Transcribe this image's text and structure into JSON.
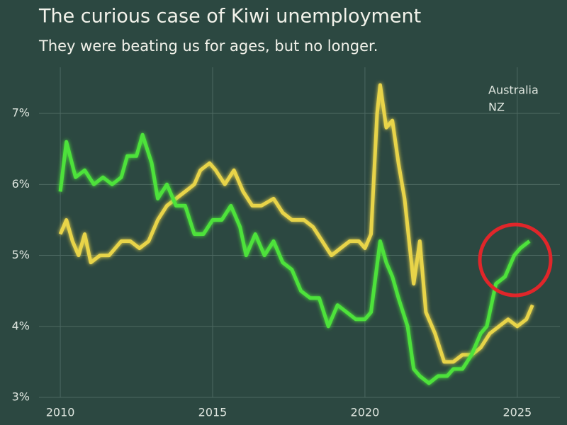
{
  "chart_data": {
    "type": "line",
    "title": "The curious case of Kiwi unemployment",
    "subtitle": "They were beating us for ages, but no longer.",
    "xlim": [
      2009.3,
      2026.4
    ],
    "xticks": [
      2010,
      2015,
      2020,
      2025
    ],
    "ylim": [
      3,
      7.55
    ],
    "yticks": [
      {
        "value": 3,
        "label": "3%"
      },
      {
        "value": 4,
        "label": "4%"
      },
      {
        "value": 5,
        "label": "5%"
      },
      {
        "value": 6,
        "label": "6%"
      },
      {
        "value": 7,
        "label": "7%"
      }
    ],
    "grid": true,
    "legend": "top-right",
    "series": [
      {
        "name": "Australia",
        "color": "#e8d44a",
        "x": [
          2010.0,
          2010.2,
          2010.4,
          2010.6,
          2010.8,
          2011.0,
          2011.3,
          2011.6,
          2012.0,
          2012.3,
          2012.6,
          2012.9,
          2013.2,
          2013.5,
          2013.8,
          2014.1,
          2014.4,
          2014.6,
          2014.9,
          2015.1,
          2015.4,
          2015.7,
          2016.0,
          2016.3,
          2016.6,
          2017.0,
          2017.3,
          2017.6,
          2018.0,
          2018.3,
          2018.6,
          2018.9,
          2019.2,
          2019.5,
          2019.8,
          2020.0,
          2020.2,
          2020.4,
          2020.5,
          2020.7,
          2020.9,
          2021.1,
          2021.3,
          2021.6,
          2021.8,
          2022.0,
          2022.3,
          2022.6,
          2022.9,
          2023.2,
          2023.5,
          2023.8,
          2024.1,
          2024.4,
          2024.7,
          2025.0,
          2025.3,
          2025.5
        ],
        "values": [
          5.3,
          5.5,
          5.2,
          5.0,
          5.3,
          4.9,
          5.0,
          5.0,
          5.2,
          5.2,
          5.1,
          5.2,
          5.5,
          5.7,
          5.8,
          5.9,
          6.0,
          6.2,
          6.3,
          6.2,
          6.0,
          6.2,
          5.9,
          5.7,
          5.7,
          5.8,
          5.6,
          5.5,
          5.5,
          5.4,
          5.2,
          5.0,
          5.1,
          5.2,
          5.2,
          5.1,
          5.3,
          7.0,
          7.4,
          6.8,
          6.9,
          6.3,
          5.8,
          4.6,
          5.2,
          4.2,
          3.9,
          3.5,
          3.5,
          3.6,
          3.6,
          3.7,
          3.9,
          4.0,
          4.1,
          4.0,
          4.1,
          4.3
        ]
      },
      {
        "name": "NZ",
        "color": "#4ee23a",
        "x": [
          2010.0,
          2010.2,
          2010.5,
          2010.8,
          2011.1,
          2011.4,
          2011.7,
          2012.0,
          2012.2,
          2012.5,
          2012.7,
          2013.0,
          2013.2,
          2013.5,
          2013.8,
          2014.1,
          2014.4,
          2014.7,
          2015.0,
          2015.3,
          2015.6,
          2015.9,
          2016.1,
          2016.4,
          2016.7,
          2017.0,
          2017.3,
          2017.6,
          2017.9,
          2018.2,
          2018.5,
          2018.8,
          2019.1,
          2019.4,
          2019.7,
          2020.0,
          2020.2,
          2020.5,
          2020.7,
          2020.9,
          2021.1,
          2021.4,
          2021.6,
          2021.8,
          2022.1,
          2022.4,
          2022.7,
          2022.9,
          2023.2,
          2023.5,
          2023.8,
          2024.0,
          2024.3,
          2024.6,
          2024.9,
          2025.1,
          2025.4
        ],
        "values": [
          5.9,
          6.6,
          6.1,
          6.2,
          6.0,
          6.1,
          6.0,
          6.1,
          6.4,
          6.4,
          6.7,
          6.3,
          5.8,
          6.0,
          5.7,
          5.7,
          5.3,
          5.3,
          5.5,
          5.5,
          5.7,
          5.4,
          5.0,
          5.3,
          5.0,
          5.2,
          4.9,
          4.8,
          4.5,
          4.4,
          4.4,
          4.0,
          4.3,
          4.2,
          4.1,
          4.1,
          4.2,
          5.2,
          4.9,
          4.7,
          4.4,
          4.0,
          3.4,
          3.3,
          3.2,
          3.3,
          3.3,
          3.4,
          3.4,
          3.6,
          3.9,
          4.0,
          4.6,
          4.7,
          5.0,
          5.1,
          5.2
        ]
      }
    ]
  }
}
